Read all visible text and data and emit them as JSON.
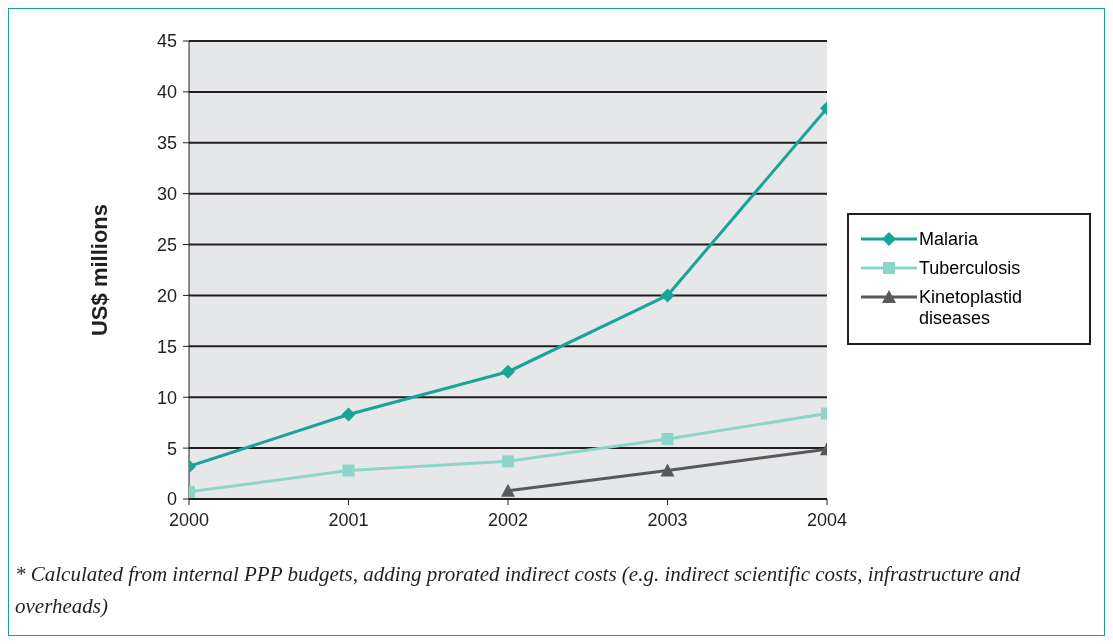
{
  "chart_data": {
    "type": "line",
    "ylabel": "US$ millions",
    "x": [
      2000,
      2001,
      2002,
      2003,
      2004
    ],
    "series": [
      {
        "name": "Malaria",
        "color": "#16a596",
        "values": [
          3.2,
          8.3,
          12.5,
          20,
          38.4
        ],
        "marker": "diamond"
      },
      {
        "name": "Tuberculosis",
        "color": "#8ed5c9",
        "values": [
          0.7,
          2.8,
          3.7,
          5.9,
          8.4
        ],
        "marker": "square"
      },
      {
        "name": "Kinetoplastid diseases",
        "color": "#58595b",
        "values": [
          null,
          null,
          0.8,
          2.8,
          4.9
        ],
        "marker": "triangle"
      }
    ],
    "xlim": [
      2000,
      2004
    ],
    "xticks": [
      2000,
      2001,
      2002,
      2003,
      2004
    ],
    "ylim": [
      0,
      45
    ],
    "yticks": [
      0,
      5,
      10,
      15,
      20,
      25,
      30,
      35,
      40,
      45
    ],
    "grid": "y",
    "legend": "right",
    "annotations": [
      "* Calculated from internal PPP budgets, adding prorated indirect costs (e.g. indirect scientific costs, infrastructure and overheads)"
    ]
  }
}
